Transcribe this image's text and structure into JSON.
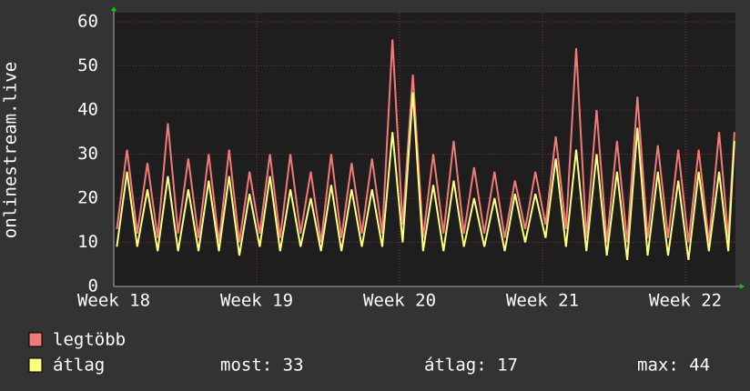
{
  "chart_data": {
    "type": "line",
    "y_label": "onlinestream.live",
    "x": [
      0.15,
      0.65,
      1.15,
      1.65,
      2.15,
      2.65,
      3.15,
      3.65,
      4.15,
      4.65,
      5.15,
      5.65,
      6.15,
      6.65,
      7.15,
      7.65,
      8.15,
      8.65,
      9.15,
      9.65,
      10.15,
      10.65,
      11.15,
      11.65,
      12.15,
      12.65,
      13.15,
      13.65,
      14.15,
      14.65,
      15.15,
      15.65,
      16.15,
      16.65,
      17.15,
      17.65,
      18.15,
      18.65,
      19.15,
      19.65,
      20.15,
      20.65,
      21.15,
      21.65,
      22.15,
      22.65,
      23.15,
      23.65,
      24.15,
      24.65,
      25.15,
      25.65,
      26.15,
      26.65,
      27.15,
      27.65,
      28.15,
      28.65,
      29.15,
      29.65,
      30.1,
      30.4
    ],
    "series": [
      {
        "name": "legtöbb",
        "color": "#f47a7a",
        "values": [
          13,
          31,
          12,
          28,
          11,
          37,
          12,
          29,
          11,
          30,
          10,
          31,
          10,
          26,
          12,
          30,
          11,
          30,
          12,
          26,
          10,
          30,
          11,
          28,
          12,
          29,
          12,
          56,
          14,
          48,
          11,
          30,
          12,
          33,
          12,
          27,
          12,
          26,
          11,
          24,
          13,
          26,
          14,
          34,
          13,
          54,
          11,
          40,
          10,
          33,
          10,
          43,
          11,
          32,
          11,
          31,
          10,
          31,
          10,
          35,
          11,
          35
        ]
      },
      {
        "name": "átlag",
        "color": "#ffff80",
        "values": [
          9,
          26,
          9,
          22,
          8,
          25,
          8,
          22,
          8,
          24,
          8,
          25,
          7,
          21,
          9,
          25,
          8,
          22,
          9,
          20,
          8,
          23,
          8,
          22,
          9,
          22,
          9,
          35,
          10,
          44,
          8,
          23,
          8,
          24,
          9,
          20,
          9,
          20,
          8,
          21,
          10,
          21,
          11,
          29,
          9,
          31,
          8,
          30,
          7,
          26,
          6,
          36,
          7,
          26,
          7,
          24,
          6,
          26,
          8,
          26,
          8,
          33
        ]
      }
    ],
    "xlim": [
      0,
      30.45
    ],
    "xticks": [
      {
        "value": 0,
        "label": "Week 18"
      },
      {
        "value": 7,
        "label": "Week 19"
      },
      {
        "value": 14,
        "label": "Week 20"
      },
      {
        "value": 21,
        "label": "Week 21"
      },
      {
        "value": 28,
        "label": "Week 22"
      }
    ],
    "ylim": [
      0,
      60
    ],
    "yticks": [
      0,
      10,
      20,
      30,
      40,
      50,
      60
    ],
    "grid": true,
    "stats": [
      "most: 33",
      "átlag: 17",
      "max: 44"
    ]
  }
}
